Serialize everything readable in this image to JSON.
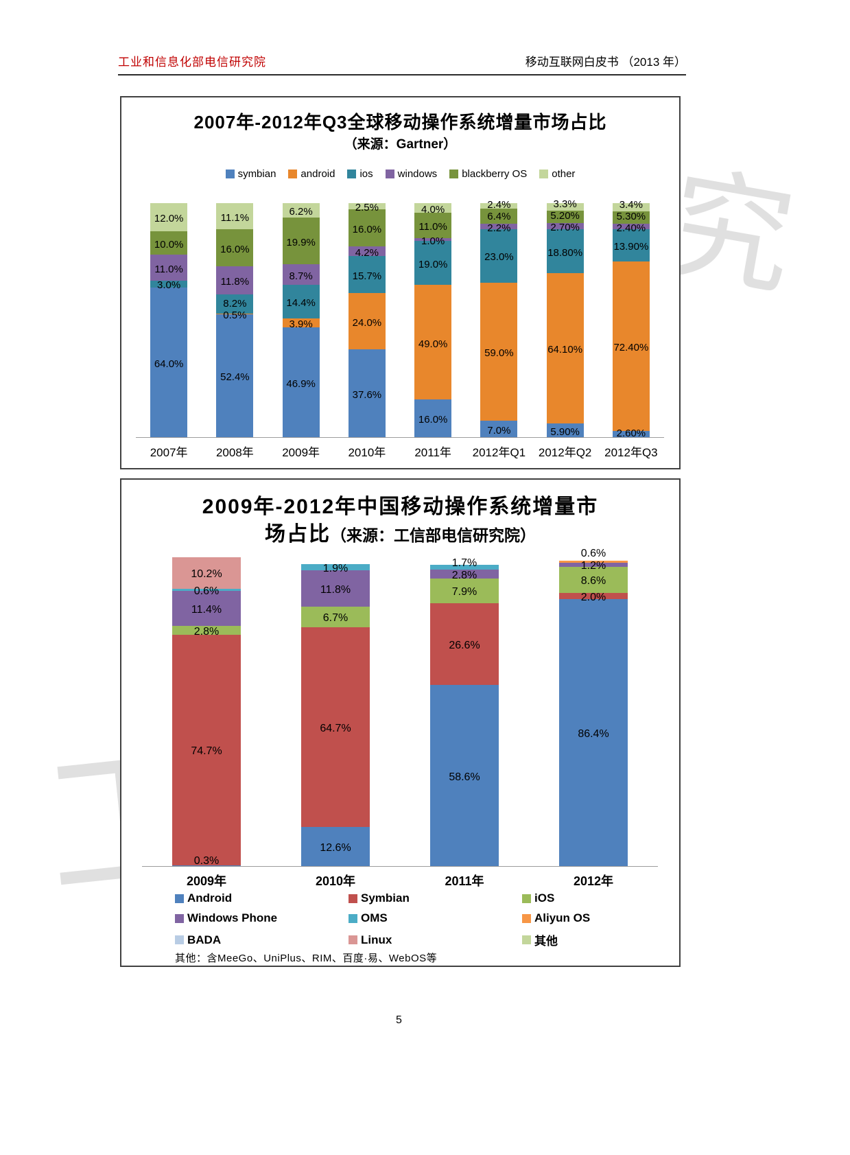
{
  "page": {
    "header_left": "工业和信息化部电信研究院",
    "header_right": "移动互联网白皮书 （2013 年）",
    "page_number": "5"
  },
  "watermark": {
    "glyph1": "究",
    "glyph2": "工"
  },
  "chart_data": [
    {
      "type": "bar",
      "stacked": true,
      "title": "2007年-2012年Q3全球移动操作系统增量市场占比",
      "subtitle": "（来源：Gartner）",
      "categories": [
        "2007年",
        "2008年",
        "2009年",
        "2010年",
        "2011年",
        "2012年Q1",
        "2012年Q2",
        "2012年Q3"
      ],
      "ylim": [
        0,
        100
      ],
      "grid": false,
      "legend_position": "top",
      "series": [
        {
          "name": "symbian",
          "color": "#4F81BD",
          "values": [
            64.0,
            52.4,
            46.9,
            37.6,
            16.0,
            7.0,
            5.9,
            2.6
          ],
          "labels": [
            "64.0%",
            "52.4%",
            "46.9%",
            "37.6%",
            "16.0%",
            "7.0%",
            "5.90%",
            "2.60%"
          ]
        },
        {
          "name": "android",
          "color": "#E8872C",
          "values": [
            0,
            0.5,
            3.9,
            24.0,
            49.0,
            59.0,
            64.1,
            72.4
          ],
          "labels": [
            "",
            "0.5%",
            "3.9%",
            "24.0%",
            "49.0%",
            "59.0%",
            "64.10%",
            "72.40%"
          ]
        },
        {
          "name": "ios",
          "color": "#31859C",
          "values": [
            3.0,
            8.2,
            14.4,
            15.7,
            19.0,
            23.0,
            18.8,
            13.9
          ],
          "labels": [
            "3.0%",
            "8.2%",
            "14.4%",
            "15.7%",
            "19.0%",
            "23.0%",
            "18.80%",
            "13.90%"
          ]
        },
        {
          "name": "windows",
          "color": "#8064A2",
          "values": [
            11.0,
            11.8,
            8.7,
            4.2,
            1.0,
            2.2,
            2.7,
            2.4
          ],
          "labels": [
            "11.0%",
            "11.8%",
            "8.7%",
            "4.2%",
            "1.0%",
            "2.2%",
            "2.70%",
            "2.40%"
          ]
        },
        {
          "name": "blackberry OS",
          "color": "#77933C",
          "values": [
            10.0,
            16.0,
            19.9,
            16.0,
            11.0,
            6.4,
            5.2,
            5.3
          ],
          "labels": [
            "10.0%",
            "16.0%",
            "19.9%",
            "16.0%",
            "11.0%",
            "6.4%",
            "5.20%",
            "5.30%"
          ]
        },
        {
          "name": "other",
          "color": "#C3D69B",
          "values": [
            12.0,
            11.1,
            6.2,
            2.5,
            4.0,
            2.4,
            3.3,
            3.4
          ],
          "labels": [
            "12.0%",
            "11.1%",
            "6.2%",
            "2.5%",
            "4.0%",
            "2.4%",
            "3.3%",
            "3.4%"
          ]
        }
      ]
    },
    {
      "type": "bar",
      "stacked": true,
      "title": "2009年-2012年中国移动操作系统增量市场占比",
      "title_line1": "2009年-2012年中国移动操作系统增量市",
      "title_line2": "场占比",
      "subtitle": "（来源：工信部电信研究院）",
      "note": "其他：含MeeGo、UniPlus、RIM、百度·易、WebOS等",
      "categories": [
        "2009年",
        "2010年",
        "2011年",
        "2012年"
      ],
      "ylim": [
        0,
        100
      ],
      "grid": false,
      "legend_position": "bottom",
      "series": [
        {
          "name": "Android",
          "color": "#4F81BD",
          "values": [
            0.3,
            12.6,
            58.6,
            86.4
          ],
          "labels": [
            "0.3%",
            "12.6%",
            "58.6%",
            "86.4%"
          ]
        },
        {
          "name": "Symbian",
          "color": "#C0504D",
          "values": [
            74.7,
            64.7,
            26.6,
            2.0
          ],
          "labels": [
            "74.7%",
            "64.7%",
            "26.6%",
            "2.0%"
          ]
        },
        {
          "name": "iOS",
          "color": "#9BBB59",
          "values": [
            2.8,
            6.7,
            7.9,
            8.6
          ],
          "labels": [
            "2.8%",
            "6.7%",
            "7.9%",
            "8.6%"
          ]
        },
        {
          "name": "Windows Phone",
          "color": "#8064A2",
          "values": [
            11.4,
            11.8,
            2.8,
            1.2
          ],
          "labels": [
            "11.4%",
            "11.8%",
            "2.8%",
            "1.2%"
          ]
        },
        {
          "name": "OMS",
          "color": "#4BACC6",
          "values": [
            0.6,
            1.9,
            1.7,
            0
          ],
          "labels": [
            "0.6%",
            "1.9%",
            "1.7%",
            ""
          ]
        },
        {
          "name": "Aliyun OS",
          "color": "#F79646",
          "values": [
            0,
            0,
            0,
            0.6
          ],
          "labels": [
            "",
            "",
            "",
            "0.6%"
          ]
        },
        {
          "name": "BADA",
          "color": "#B8CCE4",
          "values": [
            0,
            0,
            0,
            0
          ],
          "labels": [
            "",
            "",
            "",
            ""
          ]
        },
        {
          "name": "Linux",
          "color": "#DA9694",
          "values": [
            10.2,
            0,
            0,
            0
          ],
          "labels": [
            "10.2%",
            "",
            "",
            ""
          ]
        },
        {
          "name": "其他",
          "color": "#C3D69B",
          "values": [
            0,
            0,
            0,
            0
          ],
          "labels": [
            "",
            "",
            "",
            ""
          ]
        }
      ]
    }
  ]
}
